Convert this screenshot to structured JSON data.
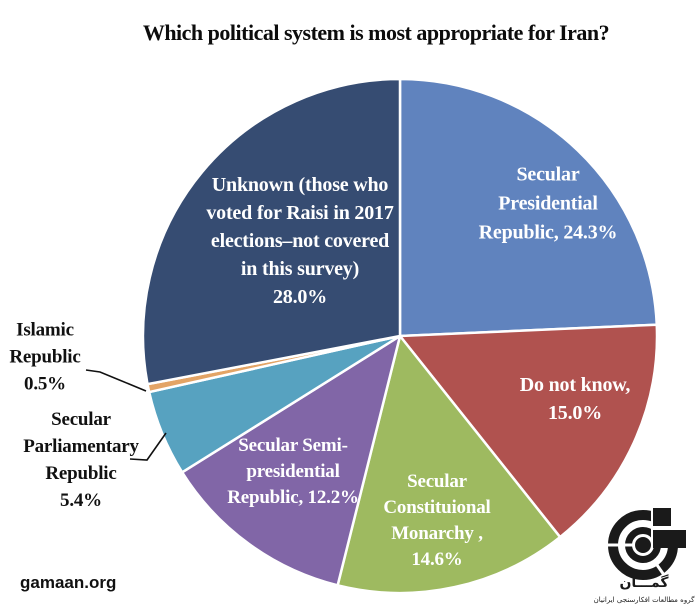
{
  "title": "Which political system is most appropriate for Iran?",
  "source": "gamaan.org",
  "logo": {
    "brand": "گمـــان",
    "tagline": "گروه مطالعات افکارسنجی ایرانیان"
  },
  "chart_data": {
    "type": "pie",
    "title": "Which political system is most appropriate for Iran?",
    "unit": "%",
    "start_angle_deg": 0,
    "direction": "clockwise",
    "legend": "none",
    "label_style": "inside slices, with external callouts for small slices",
    "slices": [
      {
        "id": "secular-presidential-republic",
        "label": "Secular Presidential Republic",
        "value": 24.3,
        "color": "#6083be",
        "display": "Secular\nPresidential\nRepublic, 24.3%"
      },
      {
        "id": "do-not-know",
        "label": "Do not know",
        "value": 15.0,
        "color": "#b0524f",
        "display": "Do not know,\n15.0%"
      },
      {
        "id": "secular-constitutional-monarchy",
        "label": "Secular Constituional Monarchy",
        "value": 14.6,
        "color": "#9eba60",
        "display": "Secular\nConstituional\nMonarchy ,\n14.6%"
      },
      {
        "id": "secular-semi-presidential-republic",
        "label": "Secular Semi-presidential Republic",
        "value": 12.2,
        "color": "#8166a7",
        "display": "Secular Semi-\npresidential\nRepublic, 12.2%"
      },
      {
        "id": "secular-parliamentary-republic",
        "label": "Secular Parliamentary Republic",
        "value": 5.4,
        "color": "#57a2c0",
        "display": "Secular\nParliamentary\nRepublic\n5.4%"
      },
      {
        "id": "islamic-republic",
        "label": "Islamic Republic",
        "value": 0.5,
        "color": "#e3a466",
        "display": "Islamic\nRepublic\n0.5%"
      },
      {
        "id": "unknown-raisi-2017",
        "label": "Unknown (those who voted for Raisi in 2017 elections–not covered in this survey)",
        "value": 28.0,
        "color": "#364c72",
        "display": "Unknown (those who\nvoted for Raisi in 2017\nelections–not covered\nin this survey)\n28.0%"
      }
    ]
  }
}
